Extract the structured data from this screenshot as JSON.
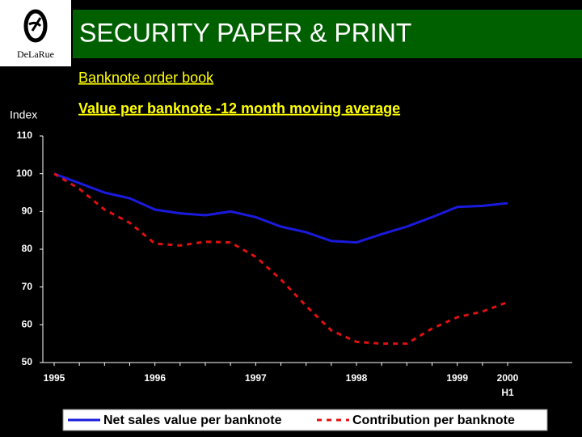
{
  "logo_text": "DeLaRue",
  "header": "SECURITY PAPER & PRINT",
  "subtitle": "Banknote order book",
  "chart_data": {
    "type": "line",
    "title": "Value per banknote -12 month moving average",
    "y_label": "Index",
    "categories": [
      "1995",
      null,
      null,
      null,
      "1996",
      null,
      null,
      null,
      "1997",
      null,
      null,
      null,
      "1998",
      null,
      null,
      null,
      "1999",
      null,
      "2000"
    ],
    "last_category_sublabel": "H1",
    "series": [
      {
        "name": "Net sales value per banknote",
        "color": "#1a1adc",
        "dash": false,
        "values": [
          100,
          97.5,
          95,
          93.5,
          90.5,
          89.5,
          89,
          90,
          88.5,
          86,
          84.5,
          82.2,
          81.8,
          84,
          86,
          88.5,
          91.2,
          91.5,
          92.2
        ]
      },
      {
        "name": "Contribution per banknote",
        "color": "#e01010",
        "dash": true,
        "values": [
          100,
          96,
          90.5,
          87,
          81.5,
          81,
          82,
          81.8,
          78,
          72,
          65,
          58.5,
          55.5,
          55,
          55,
          59,
          62,
          63.5,
          66
        ]
      }
    ],
    "ylim": [
      50,
      110
    ],
    "yticks": [
      50,
      60,
      70,
      80,
      90,
      100,
      110
    ],
    "grid": false
  }
}
